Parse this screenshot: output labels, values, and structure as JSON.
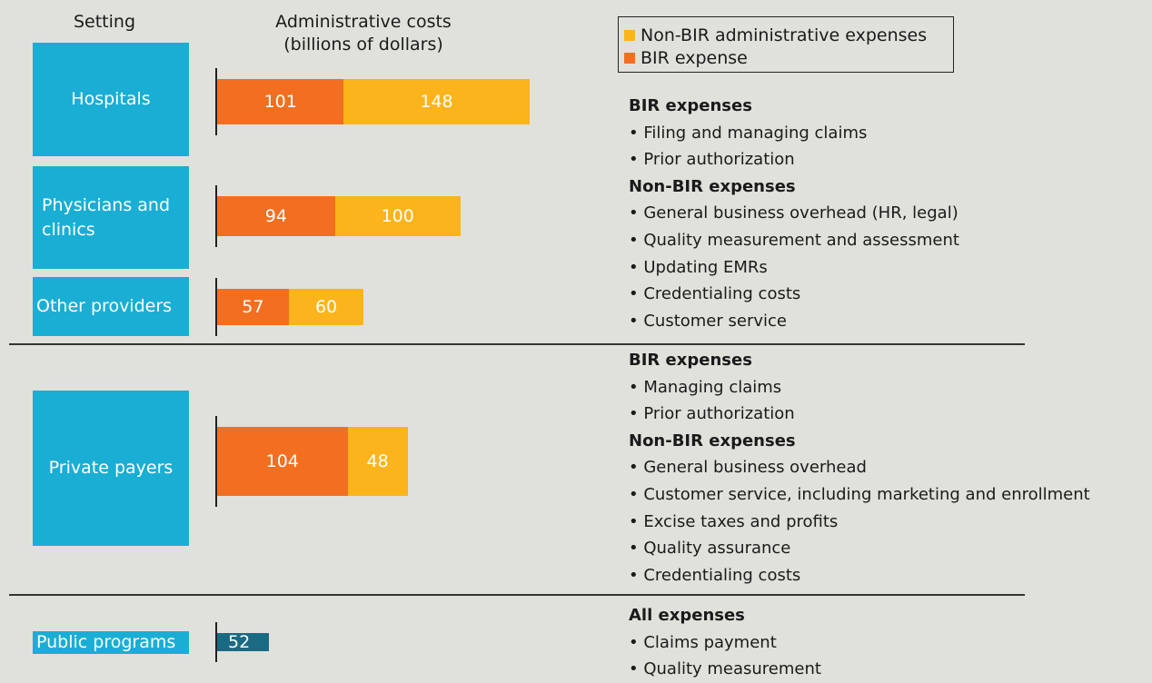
{
  "chart_data": {
    "type": "bar",
    "orientation": "horizontal",
    "stacked": true,
    "setting_header": "Setting",
    "value_header": "Administrative costs (billions of dollars)",
    "categories": [
      "Hospitals",
      "Physicians and clinics",
      "Other providers",
      "Private payers",
      "Public programs"
    ],
    "category_color": "#1aaed4",
    "series": [
      {
        "name": "BIR expense",
        "color": "#f26f21",
        "values": [
          101,
          94,
          57,
          104,
          null
        ]
      },
      {
        "name": "Non-BIR administrative expenses",
        "color": "#fbb41b",
        "values": [
          148,
          100,
          60,
          48,
          null
        ]
      }
    ],
    "combined_values": [
      null,
      null,
      null,
      null,
      52
    ],
    "combined_color": "#1b6a83",
    "legend_order": [
      1,
      0
    ],
    "expense_notes": [
      {
        "sections": [
          {
            "heading": "BIR expenses",
            "items": [
              "• Filing and managing claims",
              "• Prior authorization"
            ]
          },
          {
            "heading": "Non-BIR expenses",
            "items": [
              "• General business overhead (HR, legal)",
              "• Quality measurement and assessment",
              "• Updating EMRs",
              "• Credentialing costs",
              "• Customer service"
            ]
          }
        ]
      },
      {
        "sections": [
          {
            "heading": "BIR expenses",
            "items": [
              "• Managing claims",
              "• Prior authorization"
            ]
          },
          {
            "heading": "Non-BIR expenses",
            "items": [
              "• General business overhead",
              "• Customer service, including marketing and enrollment",
              "• Excise taxes and profits",
              "• Quality assurance",
              "• Credentialing costs"
            ]
          }
        ]
      },
      {
        "sections": [
          {
            "heading": "All expenses",
            "items": [
              "• Claims payment",
              "• Quality measurement"
            ]
          }
        ]
      }
    ]
  }
}
